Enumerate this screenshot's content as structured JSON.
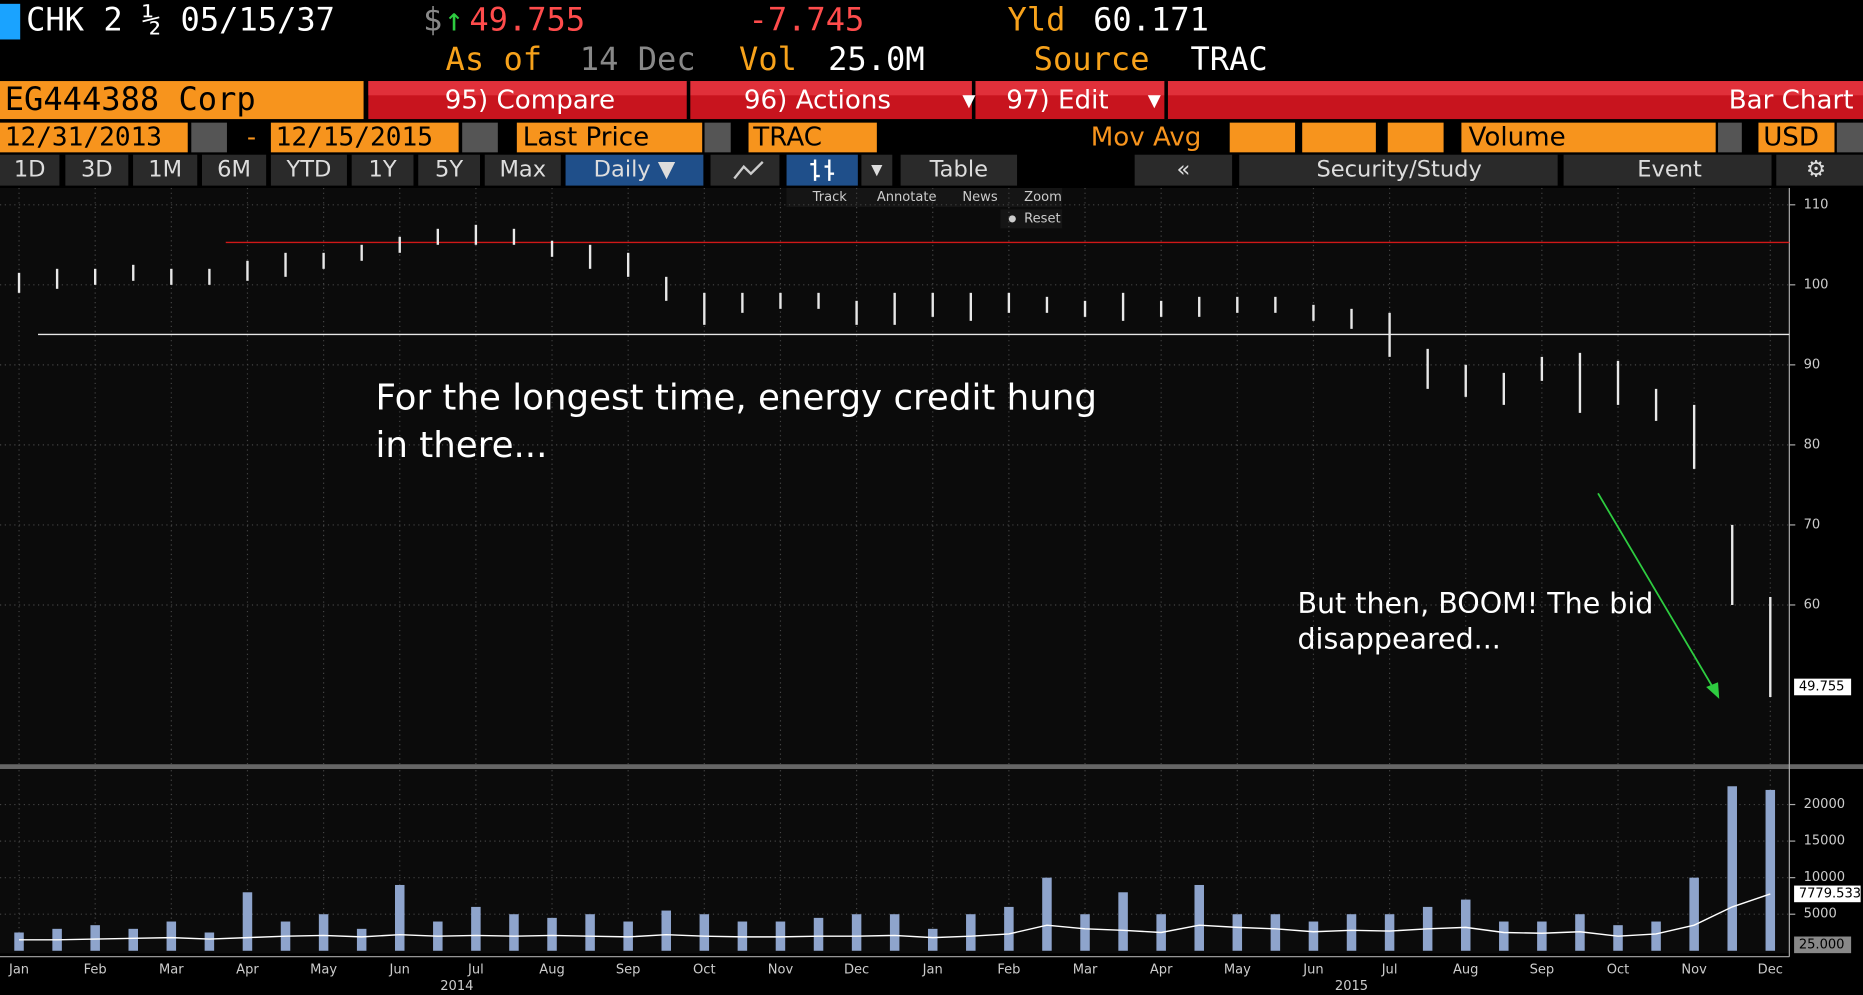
{
  "header": {
    "security": "CHK 2 ½ 05/15/37",
    "currency": "$",
    "arrow": "↑",
    "price": "49.755",
    "change": "-7.745",
    "yield_label": "Yld",
    "yield": "60.171",
    "as_of_label": "As of",
    "as_of": "14 Dec",
    "vol_label": "Vol",
    "vol": "25.0M",
    "source_label": "Source",
    "source": "TRAC"
  },
  "toolbar": {
    "id": "EG444388 Corp",
    "buttons": [
      "95) Compare",
      "96) Actions",
      "97) Edit"
    ],
    "view": "Bar Chart"
  },
  "settings": {
    "start": "12/31/2013",
    "dash": "-",
    "end": "12/15/2015",
    "field": "Last Price",
    "source": "TRAC",
    "mov_avg": "Mov Avg",
    "lower": "Volume",
    "currency": "USD"
  },
  "tabs": [
    "1D",
    "3D",
    "1M",
    "6M",
    "YTD",
    "1Y",
    "5Y",
    "Max"
  ],
  "period": "Daily ▼",
  "table": "Table",
  "collapse": "«",
  "study": "Security/Study",
  "event": "Event",
  "tools": [
    "Track",
    "Annotate",
    "News",
    "Zoom"
  ],
  "reset": "Reset",
  "chart_data": {
    "type": "hilo",
    "categories": [
      "Jan",
      null,
      "Feb",
      null,
      "Mar",
      null,
      "Apr",
      null,
      "May",
      null,
      "Jun",
      null,
      "Jul",
      null,
      "Aug",
      null,
      "Sep",
      null,
      "Oct",
      null,
      "Nov",
      null,
      "Dec",
      null,
      "Jan",
      null,
      "Feb",
      null,
      "Mar",
      null,
      "Apr",
      null,
      "May",
      null,
      "Jun",
      null,
      "Jul",
      null,
      "Aug",
      null,
      "Sep",
      null,
      "Oct",
      null,
      "Nov",
      null,
      "Dec"
    ],
    "years": [
      "2014",
      "2015"
    ],
    "highs": [
      101.5,
      102,
      102,
      102.5,
      102,
      102,
      103,
      104,
      104,
      105,
      106,
      107,
      107.5,
      107,
      105.5,
      105,
      104,
      101,
      99,
      99,
      99,
      99,
      98,
      99,
      99,
      99,
      99,
      98.5,
      98,
      99,
      98,
      98.5,
      98.5,
      98.5,
      97.5,
      97,
      96.5,
      92,
      90,
      89,
      91,
      91.5,
      90.5,
      87,
      85,
      70,
      61
    ],
    "lows": [
      99,
      99.5,
      100,
      100.5,
      100,
      100,
      100.5,
      101,
      102,
      103,
      104,
      105,
      105,
      105,
      103.5,
      102,
      101,
      98,
      95,
      96.5,
      97,
      97,
      95,
      95,
      96,
      95.5,
      96.5,
      96.5,
      96,
      95.5,
      96,
      96,
      96.5,
      96.5,
      95.5,
      94.5,
      91,
      87,
      86,
      85,
      88,
      84,
      85,
      83,
      77,
      60,
      48.5
    ],
    "color": "#e8e8e8",
    "ylim": [
      40.1,
      112.1
    ],
    "yticks": [
      60,
      70,
      80,
      90,
      100,
      110
    ],
    "last_price": 49.755,
    "levels": [
      {
        "value": 105.3,
        "color": "#d01818"
      },
      {
        "value": 93.8,
        "color": "#e8e8e8"
      }
    ],
    "volume": {
      "values": [
        2500,
        3000,
        3500,
        3000,
        4000,
        2500,
        8000,
        4000,
        5000,
        3000,
        9000,
        4000,
        6000,
        5000,
        4500,
        5000,
        4000,
        5500,
        5000,
        4000,
        4000,
        4500,
        5000,
        5000,
        3000,
        5000,
        6000,
        10000,
        5000,
        8000,
        5000,
        9000,
        5000,
        5000,
        4000,
        5000,
        5000,
        6000,
        7000,
        4000,
        4000,
        5000,
        3500,
        4000,
        10000,
        22500,
        22000
      ],
      "color": "#8ea4cc",
      "moving_average": [
        1500,
        1500,
        1600,
        1700,
        1800,
        1600,
        1800,
        2000,
        2100,
        1900,
        2200,
        2000,
        2100,
        2000,
        2100,
        2000,
        1900,
        2200,
        2000,
        1900,
        1900,
        2000,
        2000,
        2100,
        1800,
        2000,
        2300,
        3500,
        3000,
        2800,
        2500,
        3500,
        3200,
        3000,
        2600,
        2800,
        2700,
        3000,
        3200,
        2500,
        2400,
        2600,
        2000,
        2300,
        3500,
        6000,
        7779.533
      ],
      "ma_color": "#ffffff",
      "last_volume": "25.000",
      "ylim": [
        0,
        24700
      ],
      "yticks": [
        5000,
        10000,
        15000,
        20000
      ]
    },
    "grid": true,
    "annotations": [
      [
        "For the longest time, energy credit hung",
        "in there..."
      ],
      [
        "But then, BOOM!  The bid",
        "disappeared..."
      ]
    ]
  }
}
